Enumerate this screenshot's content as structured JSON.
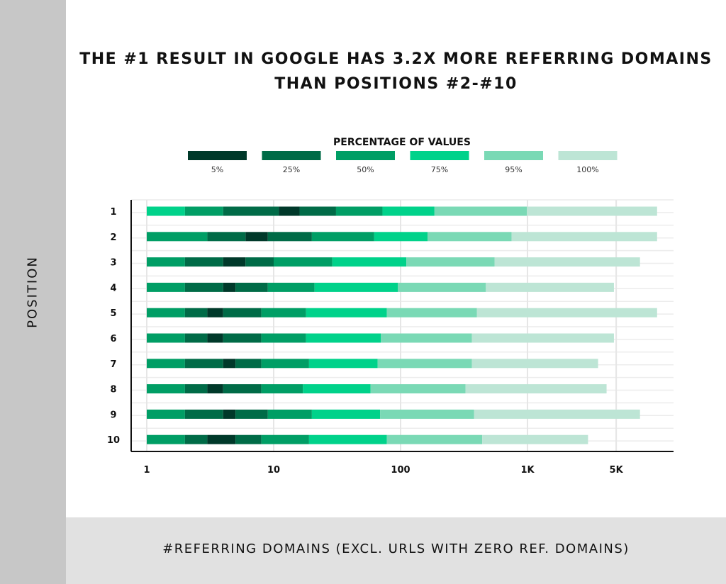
{
  "chart_data": {
    "type": "bar",
    "subtype": "horizontal percentile bands",
    "title": "THE #1 RESULT IN GOOGLE HAS 3.2X MORE REFERRING DOMAINS THAN POSITIONS #2-#10",
    "xlabel": "#REFERRING DOMAINS (EXCL. URLS WITH ZERO REF. DOMAINS)",
    "ylabel": "POSITION",
    "x_scale": "log",
    "xlim": [
      1,
      14000
    ],
    "x_ticks": [
      {
        "value": 1,
        "label": "1"
      },
      {
        "value": 10,
        "label": "10"
      },
      {
        "value": 100,
        "label": "100"
      },
      {
        "value": 1000,
        "label": "1K"
      },
      {
        "value": 5000,
        "label": "5K"
      }
    ],
    "grid": true,
    "legend": {
      "title": "PERCENTAGE OF VALUES",
      "placement": "top",
      "entries": [
        {
          "key": "p5",
          "label": "5%",
          "color": "#00392a"
        },
        {
          "key": "p25",
          "label": "25%",
          "color": "#006b47"
        },
        {
          "key": "p50",
          "label": "50%",
          "color": "#009e65"
        },
        {
          "key": "p75",
          "label": "75%",
          "color": "#00d28a"
        },
        {
          "key": "p95",
          "label": "95%",
          "color": "#7ad9b5"
        },
        {
          "key": "p100",
          "label": "100%",
          "color": "#bde5d5"
        }
      ]
    },
    "categories": [
      "1",
      "2",
      "3",
      "4",
      "5",
      "6",
      "7",
      "8",
      "9",
      "10"
    ],
    "rows": [
      {
        "position": "1",
        "segments": [
          [
            1,
            2,
            "p75"
          ],
          [
            2,
            4,
            "p50"
          ],
          [
            4,
            11,
            "p25"
          ],
          [
            11,
            16,
            "p5"
          ],
          [
            16,
            31,
            "p25"
          ],
          [
            31,
            72,
            "p50"
          ],
          [
            72,
            185,
            "p75"
          ],
          [
            185,
            990,
            "p95"
          ],
          [
            990,
            10500,
            "p100"
          ]
        ]
      },
      {
        "position": "2",
        "segments": [
          [
            1,
            3,
            "p50"
          ],
          [
            3,
            6,
            "p25"
          ],
          [
            6,
            9,
            "p5"
          ],
          [
            9,
            20,
            "p25"
          ],
          [
            20,
            62,
            "p50"
          ],
          [
            62,
            163,
            "p75"
          ],
          [
            163,
            750,
            "p95"
          ],
          [
            750,
            10500,
            "p100"
          ]
        ]
      },
      {
        "position": "3",
        "segments": [
          [
            1,
            2,
            "p50"
          ],
          [
            2,
            4,
            "p25"
          ],
          [
            4,
            6,
            "p5"
          ],
          [
            6,
            10,
            "p25"
          ],
          [
            10,
            29,
            "p50"
          ],
          [
            29,
            111,
            "p75"
          ],
          [
            111,
            550,
            "p95"
          ],
          [
            550,
            7700,
            "p100"
          ]
        ]
      },
      {
        "position": "4",
        "segments": [
          [
            1,
            2,
            "p50"
          ],
          [
            2,
            4,
            "p25"
          ],
          [
            4,
            5,
            "p5"
          ],
          [
            5,
            9,
            "p25"
          ],
          [
            9,
            21,
            "p50"
          ],
          [
            21,
            95,
            "p75"
          ],
          [
            95,
            470,
            "p95"
          ],
          [
            470,
            4800,
            "p100"
          ]
        ]
      },
      {
        "position": "5",
        "segments": [
          [
            1,
            2,
            "p50"
          ],
          [
            2,
            3,
            "p25"
          ],
          [
            3,
            4,
            "p5"
          ],
          [
            4,
            8,
            "p25"
          ],
          [
            8,
            18,
            "p50"
          ],
          [
            18,
            78,
            "p75"
          ],
          [
            78,
            400,
            "p95"
          ],
          [
            400,
            10500,
            "p100"
          ]
        ]
      },
      {
        "position": "6",
        "segments": [
          [
            1,
            2,
            "p50"
          ],
          [
            2,
            3,
            "p25"
          ],
          [
            3,
            4,
            "p5"
          ],
          [
            4,
            8,
            "p25"
          ],
          [
            8,
            18,
            "p50"
          ],
          [
            18,
            70,
            "p75"
          ],
          [
            70,
            365,
            "p95"
          ],
          [
            365,
            4800,
            "p100"
          ]
        ]
      },
      {
        "position": "7",
        "segments": [
          [
            1,
            2,
            "p50"
          ],
          [
            2,
            4,
            "p25"
          ],
          [
            4,
            5,
            "p5"
          ],
          [
            5,
            8,
            "p25"
          ],
          [
            8,
            19,
            "p50"
          ],
          [
            19,
            66,
            "p75"
          ],
          [
            66,
            365,
            "p95"
          ],
          [
            365,
            3600,
            "p100"
          ]
        ]
      },
      {
        "position": "8",
        "segments": [
          [
            1,
            2,
            "p50"
          ],
          [
            2,
            3,
            "p25"
          ],
          [
            3,
            4,
            "p5"
          ],
          [
            4,
            8,
            "p25"
          ],
          [
            8,
            17,
            "p50"
          ],
          [
            17,
            58,
            "p75"
          ],
          [
            58,
            325,
            "p95"
          ],
          [
            325,
            4200,
            "p100"
          ]
        ]
      },
      {
        "position": "9",
        "segments": [
          [
            1,
            2,
            "p50"
          ],
          [
            2,
            4,
            "p25"
          ],
          [
            4,
            5,
            "p5"
          ],
          [
            5,
            9,
            "p25"
          ],
          [
            9,
            20,
            "p50"
          ],
          [
            20,
            69,
            "p75"
          ],
          [
            69,
            380,
            "p95"
          ],
          [
            380,
            7700,
            "p100"
          ]
        ]
      },
      {
        "position": "10",
        "segments": [
          [
            1,
            2,
            "p50"
          ],
          [
            2,
            3,
            "p25"
          ],
          [
            3,
            5,
            "p5"
          ],
          [
            5,
            8,
            "p25"
          ],
          [
            8,
            19,
            "p50"
          ],
          [
            19,
            78,
            "p75"
          ],
          [
            78,
            440,
            "p95"
          ],
          [
            440,
            3000,
            "p100"
          ]
        ]
      }
    ]
  }
}
